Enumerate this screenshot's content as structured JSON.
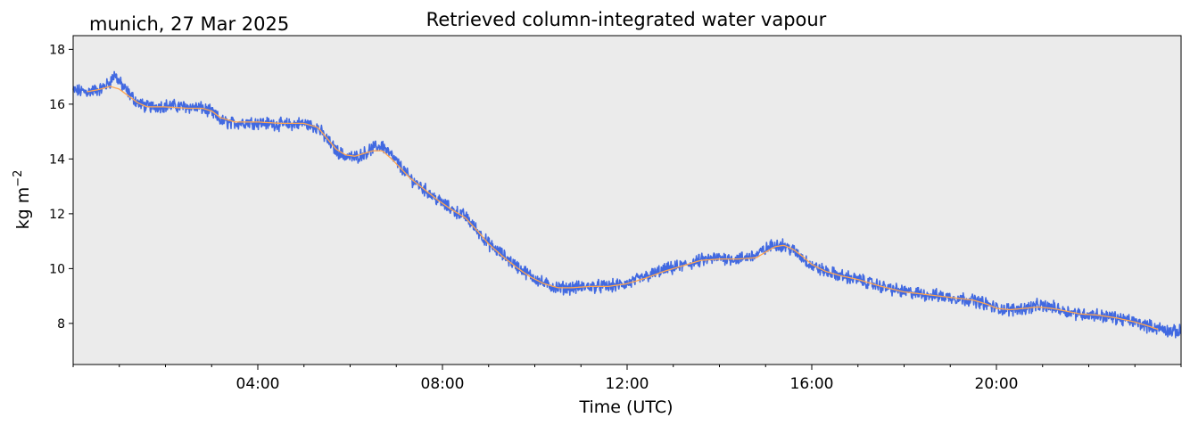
{
  "chart_data": {
    "type": "line",
    "title": "Retrieved column-integrated water vapour",
    "subtitle": "munich, 27 Mar 2025",
    "xlabel": "Time (UTC)",
    "ylabel": "kg m",
    "ylabel_superscript": "−2",
    "xlim": [
      0,
      24
    ],
    "ylim": [
      6.5,
      18.5
    ],
    "y_ticks": [
      8,
      10,
      12,
      14,
      16,
      18
    ],
    "x_ticks": [
      {
        "value": 4,
        "label": "04:00"
      },
      {
        "value": 8,
        "label": "08:00"
      },
      {
        "value": 12,
        "label": "12:00"
      },
      {
        "value": 16,
        "label": "16:00"
      },
      {
        "value": 20,
        "label": "20:00"
      }
    ],
    "background": "#ebebeb",
    "grid": false,
    "series": [
      {
        "kind": "raw",
        "color": "#4169e1",
        "x": [
          0,
          0.3,
          0.6,
          0.8,
          0.9,
          1.0,
          1.2,
          1.4,
          1.6,
          2.0,
          2.5,
          2.8,
          3.0,
          3.2,
          3.4,
          3.8,
          4.2,
          4.6,
          5.0,
          5.3,
          5.5,
          5.7,
          5.9,
          6.1,
          6.3,
          6.5,
          6.7,
          6.9,
          7.1,
          7.3,
          7.6,
          7.9,
          8.2,
          8.5,
          8.8,
          9.0,
          9.3,
          9.6,
          9.9,
          10.2,
          10.5,
          10.8,
          11.2,
          11.6,
          12.0,
          12.4,
          12.8,
          13.2,
          13.6,
          14.0,
          14.4,
          14.8,
          15.0,
          15.2,
          15.4,
          15.6,
          15.8,
          16.0,
          16.3,
          16.6,
          17.0,
          17.5,
          18.0,
          18.5,
          19.0,
          19.5,
          19.8,
          20.0,
          20.3,
          20.6,
          20.9,
          21.2,
          21.5,
          21.8,
          22.2,
          22.6,
          23.0,
          23.3,
          23.6,
          23.8,
          24.0
        ],
        "y": [
          16.5,
          16.45,
          16.55,
          16.8,
          17.1,
          16.8,
          16.4,
          16.05,
          15.9,
          15.95,
          15.9,
          15.85,
          15.7,
          15.4,
          15.3,
          15.35,
          15.3,
          15.25,
          15.3,
          15.15,
          14.7,
          14.3,
          14.1,
          14.05,
          14.2,
          14.4,
          14.5,
          14.1,
          13.7,
          13.3,
          12.9,
          12.5,
          12.15,
          11.9,
          11.3,
          10.9,
          10.5,
          10.1,
          9.75,
          9.45,
          9.3,
          9.3,
          9.35,
          9.35,
          9.45,
          9.7,
          9.95,
          10.1,
          10.3,
          10.4,
          10.35,
          10.5,
          10.7,
          10.9,
          10.85,
          10.65,
          10.4,
          10.1,
          9.9,
          9.75,
          9.6,
          9.35,
          9.15,
          9.05,
          8.95,
          8.85,
          8.7,
          8.55,
          8.5,
          8.55,
          8.65,
          8.6,
          8.45,
          8.35,
          8.3,
          8.2,
          8.05,
          7.9,
          7.8,
          7.7,
          7.7
        ]
      },
      {
        "kind": "smoothed",
        "color": "#ffa54f",
        "x": [
          0.3,
          0.6,
          0.8,
          1.0,
          1.2,
          1.4,
          1.6,
          2.0,
          2.5,
          2.8,
          3.0,
          3.2,
          3.5,
          4.0,
          4.5,
          5.0,
          5.3,
          5.5,
          5.7,
          5.9,
          6.1,
          6.3,
          6.5,
          6.7,
          6.9,
          7.1,
          7.3,
          7.6,
          7.9,
          8.2,
          8.5,
          8.8,
          9.0,
          9.3,
          9.6,
          9.9,
          10.2,
          10.5,
          10.8,
          11.2,
          11.6,
          12.0,
          12.4,
          12.8,
          13.2,
          13.6,
          14.0,
          14.4,
          14.8,
          15.0,
          15.2,
          15.4,
          15.6,
          15.8,
          16.0,
          16.3,
          16.6,
          17.0,
          17.5,
          18.0,
          18.5,
          19.0,
          19.5,
          19.8,
          20.0,
          20.3,
          20.6,
          20.9,
          21.2,
          21.5,
          21.8,
          22.2,
          22.6,
          23.0,
          23.3,
          23.5
        ],
        "y": [
          16.45,
          16.55,
          16.65,
          16.55,
          16.3,
          16.05,
          15.9,
          15.9,
          15.85,
          15.85,
          15.75,
          15.5,
          15.35,
          15.35,
          15.3,
          15.3,
          15.15,
          14.75,
          14.35,
          14.15,
          14.1,
          14.2,
          14.3,
          14.3,
          14.0,
          13.65,
          13.3,
          12.9,
          12.5,
          12.15,
          11.85,
          11.3,
          10.9,
          10.45,
          10.05,
          9.7,
          9.45,
          9.3,
          9.3,
          9.35,
          9.35,
          9.45,
          9.65,
          9.9,
          10.1,
          10.3,
          10.35,
          10.35,
          10.4,
          10.6,
          10.8,
          10.85,
          10.7,
          10.45,
          10.15,
          9.9,
          9.75,
          9.6,
          9.35,
          9.15,
          9.05,
          8.95,
          8.85,
          8.7,
          8.55,
          8.5,
          8.55,
          8.6,
          8.55,
          8.45,
          8.35,
          8.3,
          8.2,
          8.05,
          7.9,
          7.78
        ]
      }
    ]
  }
}
